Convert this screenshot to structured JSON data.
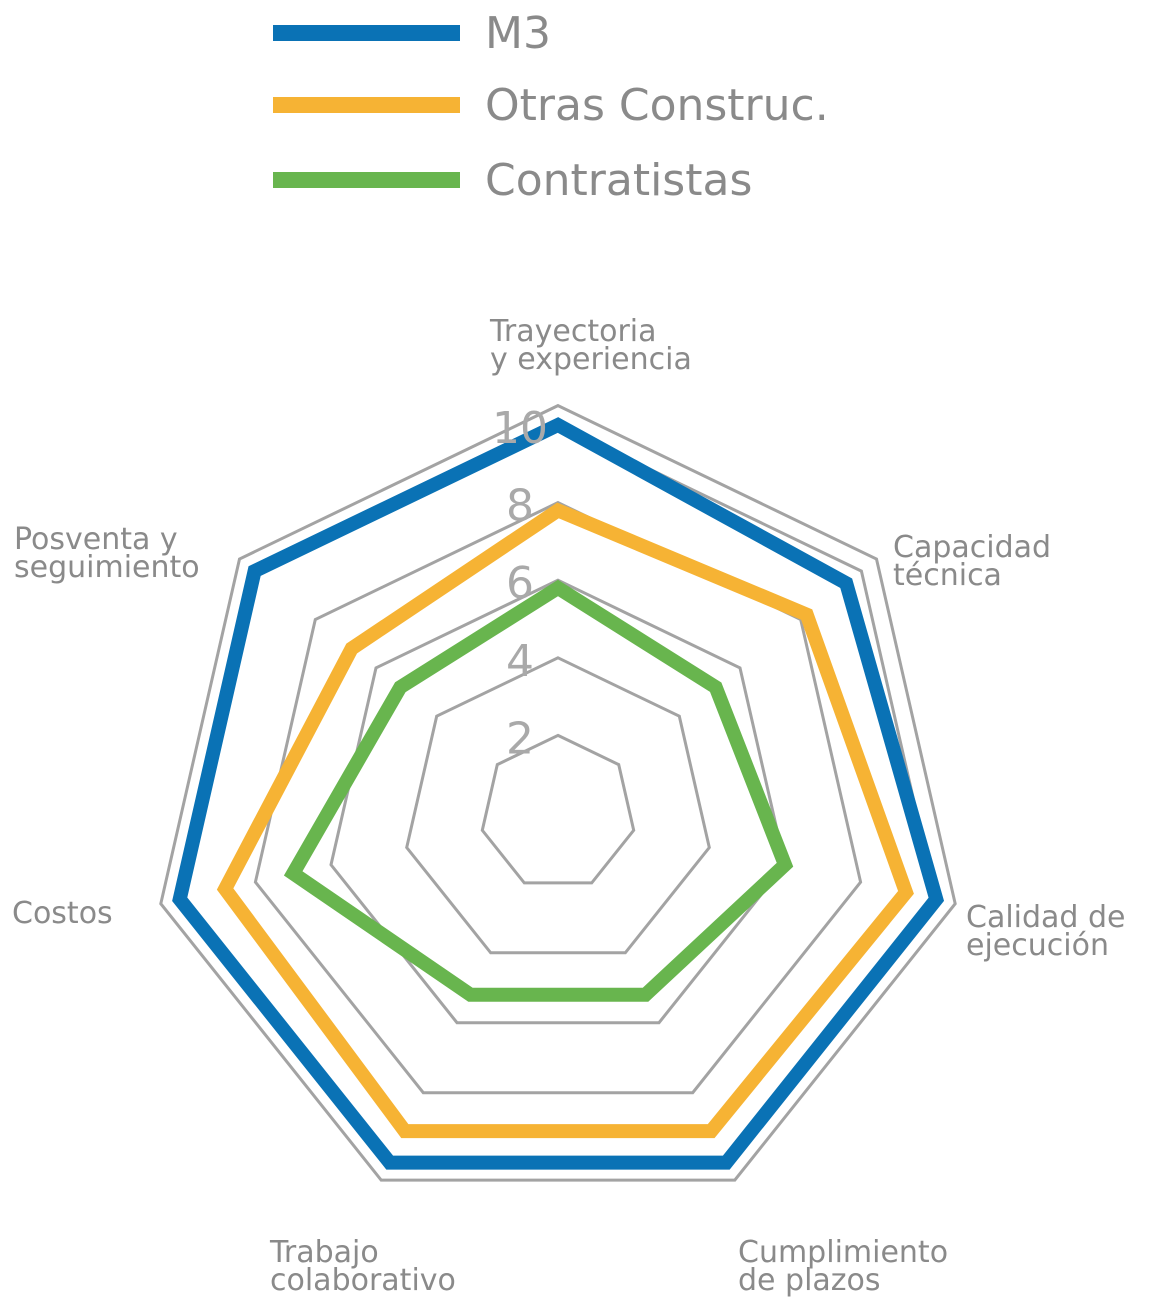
{
  "chart_data": {
    "type": "radar",
    "axes": [
      [
        "Trayectoria",
        "y experiencia"
      ],
      [
        "Capacidad",
        "técnica"
      ],
      [
        "Calidad de",
        "ejecución"
      ],
      [
        "Cumplimiento",
        "de plazos"
      ],
      [
        "Trabajo",
        "colaborativo"
      ],
      [
        "Costos"
      ],
      [
        "Posventa y",
        "seguimiento"
      ]
    ],
    "ticks": [
      "2",
      "4",
      "6",
      "8",
      "10"
    ],
    "rmax": 10,
    "series": [
      {
        "name": "M3",
        "color": "#0a72b5",
        "values": [
          10,
          9.5,
          10,
          10,
          10,
          10,
          10
        ]
      },
      {
        "name": "Otras Construc.",
        "color": "#f6b334",
        "values": [
          7.8,
          8.2,
          9.2,
          9.1,
          9.1,
          8.8,
          6.8
        ]
      },
      {
        "name": "Contratistas",
        "color": "#68b54e",
        "values": [
          5.8,
          5.2,
          6.0,
          5.2,
          5.2,
          7.0,
          5.2
        ]
      }
    ],
    "grid_color": "#a3a3a3",
    "legend_position": "top-left",
    "title": "",
    "xlabel": "",
    "ylabel": ""
  }
}
